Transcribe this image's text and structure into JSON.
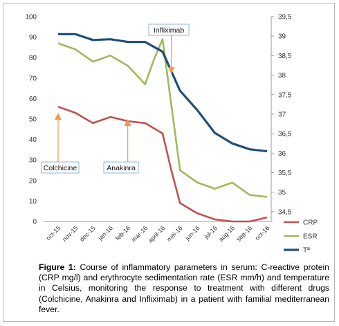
{
  "chart_data": {
    "type": "line",
    "categories": [
      "oct-15",
      "nov-15",
      "dec-15",
      "jan-16",
      "feb-16",
      "mar-16",
      "april-16",
      "mei-16",
      "jun-16",
      "jul-16",
      "aug-16",
      "sep-16",
      "oct-16"
    ],
    "y_left_ticks": [
      "0",
      "10",
      "20",
      "30",
      "40",
      "50",
      "60",
      "70",
      "80",
      "90",
      "100"
    ],
    "y_right_ticks": [
      "34,5",
      "35",
      "35,5",
      "36",
      "36,5",
      "37",
      "37,5",
      "38",
      "38,5",
      "39",
      "39,5"
    ],
    "ylim_left": [
      0,
      100
    ],
    "ylim_right": [
      34.25,
      39.5
    ],
    "grid": false,
    "legend_position": "right",
    "series": [
      {
        "name": "CRP",
        "axis": "left",
        "color": "#c0504d",
        "x": [
          0,
          1,
          2,
          3,
          4,
          5,
          6,
          6.5,
          7,
          8,
          9,
          10,
          11,
          12
        ],
        "y": [
          56,
          53,
          48,
          51,
          49,
          48,
          43,
          25,
          9,
          4,
          1,
          0,
          0,
          2
        ]
      },
      {
        "name": "ESR",
        "axis": "left",
        "color": "#9bbb59",
        "x": [
          0,
          1,
          2,
          3,
          4,
          5,
          5.5,
          6,
          7,
          8,
          9,
          10,
          11,
          12
        ],
        "y": [
          87,
          84,
          78,
          81,
          76,
          67,
          79,
          89,
          25,
          19,
          16,
          19,
          13,
          12
        ]
      },
      {
        "name": "Tª",
        "axis": "right",
        "color": "#1f4e79",
        "x": [
          0,
          1,
          2,
          3,
          4,
          5,
          6,
          6.5,
          7,
          8,
          9,
          10,
          11,
          12
        ],
        "y": [
          39.05,
          39.05,
          38.9,
          38.92,
          38.85,
          38.85,
          38.6,
          38.1,
          37.6,
          37.1,
          36.52,
          36.25,
          36.1,
          36.05
        ]
      }
    ],
    "annotations": [
      {
        "label": "Colchicine",
        "x": 0,
        "arrow_y": 53
      },
      {
        "label": "Anakinra",
        "x": 4,
        "arrow_y": 50
      },
      {
        "label": "Infliximab",
        "x": 6.5,
        "arrow_y": 72
      }
    ]
  },
  "caption": {
    "label": "Figure 1:",
    "text": " Course of inflammatory parameters in serum: C-reactive protein (CRP mg/l) and erythrocyte sedimentation rate (ESR mm/h) and temperature in Celsius, monitoring the response to treatment with different drugs (Colchicine, Anakinra and Infliximab) in a patient with familial mediterranean fever."
  },
  "colors": {
    "arrow": "#f79646",
    "axis": "#999999",
    "annotation_box": "#8db3e2"
  }
}
